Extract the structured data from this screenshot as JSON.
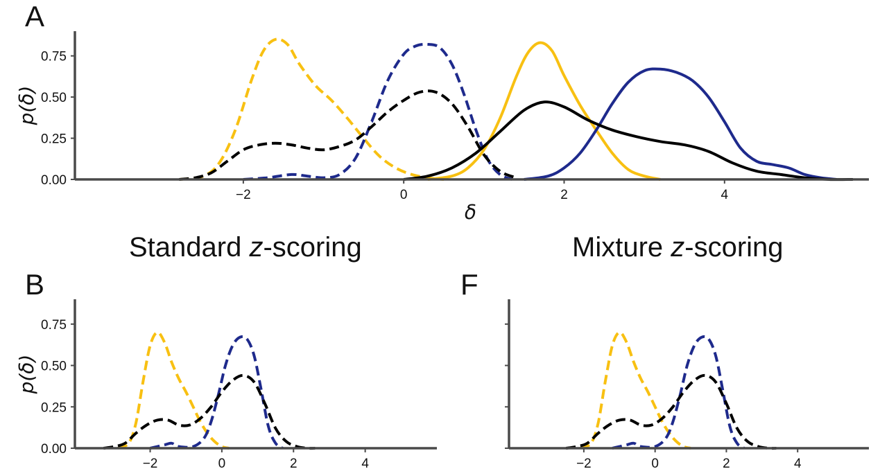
{
  "colors": {
    "gold": "#f8c012",
    "navy": "#1e2a8c",
    "black": "#000000",
    "axis": "#4a4a4a"
  },
  "section_titles": {
    "standard": "Standard ",
    "standard_z": "z",
    "standard_rest": "-scoring",
    "mixture": "Mixture ",
    "mixture_z": "z",
    "mixture_rest": "-scoring"
  },
  "chart_data": [
    {
      "panel": "A",
      "type": "line",
      "xlabel": "δ",
      "ylabel": "p(δ)",
      "xlim": [
        -4.1,
        5.8
      ],
      "ylim": [
        0,
        0.9
      ],
      "xticks": [
        "−2",
        "0",
        "2",
        "4"
      ],
      "xtick_values": [
        -2,
        0,
        2,
        4
      ],
      "yticks": [
        "0.00",
        "0.25",
        "0.50",
        "0.75"
      ],
      "ytick_values": [
        0,
        0.25,
        0.5,
        0.75
      ],
      "series": [
        {
          "color": "gold",
          "dash": true,
          "x": [
            -2.8,
            -2.5,
            -2.3,
            -2.1,
            -1.9,
            -1.75,
            -1.6,
            -1.45,
            -1.3,
            -1.1,
            -0.9,
            -0.7,
            -0.5,
            -0.3,
            -0.1,
            0.1,
            0.3,
            0.5
          ],
          "y": [
            0,
            0.02,
            0.1,
            0.3,
            0.6,
            0.78,
            0.85,
            0.82,
            0.7,
            0.57,
            0.48,
            0.37,
            0.25,
            0.14,
            0.07,
            0.03,
            0.01,
            0
          ]
        },
        {
          "color": "navy",
          "dash": true,
          "x": [
            -2.0,
            -1.7,
            -1.4,
            -1.2,
            -1.0,
            -0.8,
            -0.6,
            -0.4,
            -0.2,
            0.0,
            0.15,
            0.3,
            0.45,
            0.6,
            0.75,
            0.9,
            1.05,
            1.2,
            1.35
          ],
          "y": [
            0,
            0.01,
            0.03,
            0.02,
            0.01,
            0.03,
            0.13,
            0.35,
            0.6,
            0.76,
            0.81,
            0.82,
            0.8,
            0.7,
            0.52,
            0.3,
            0.12,
            0.03,
            0
          ]
        },
        {
          "color": "black",
          "dash": true,
          "x": [
            -2.8,
            -2.6,
            -2.4,
            -2.2,
            -2.0,
            -1.8,
            -1.6,
            -1.4,
            -1.2,
            -1.0,
            -0.8,
            -0.6,
            -0.4,
            -0.2,
            0.0,
            0.2,
            0.4,
            0.6,
            0.8,
            1.0,
            1.2,
            1.4
          ],
          "y": [
            0,
            0.01,
            0.04,
            0.11,
            0.18,
            0.21,
            0.22,
            0.21,
            0.19,
            0.18,
            0.2,
            0.24,
            0.32,
            0.41,
            0.48,
            0.53,
            0.53,
            0.46,
            0.32,
            0.15,
            0.05,
            0.01
          ]
        },
        {
          "color": "gold",
          "dash": false,
          "x": [
            0.3,
            0.6,
            0.8,
            1.0,
            1.2,
            1.4,
            1.55,
            1.7,
            1.85,
            2.0,
            2.2,
            2.4,
            2.6,
            2.8,
            3.0,
            3.2
          ],
          "y": [
            0,
            0.02,
            0.07,
            0.18,
            0.37,
            0.62,
            0.77,
            0.83,
            0.78,
            0.63,
            0.45,
            0.3,
            0.16,
            0.06,
            0.02,
            0
          ]
        },
        {
          "color": "navy",
          "dash": false,
          "x": [
            1.5,
            1.8,
            2.0,
            2.2,
            2.4,
            2.6,
            2.8,
            3.0,
            3.2,
            3.4,
            3.6,
            3.8,
            4.0,
            4.2,
            4.4,
            4.6,
            4.8,
            5.0,
            5.2,
            5.4
          ],
          "y": [
            0,
            0.02,
            0.07,
            0.16,
            0.3,
            0.46,
            0.59,
            0.66,
            0.67,
            0.65,
            0.6,
            0.5,
            0.35,
            0.19,
            0.11,
            0.09,
            0.07,
            0.03,
            0.01,
            0
          ]
        },
        {
          "color": "black",
          "dash": false,
          "x": [
            0.0,
            0.3,
            0.6,
            0.9,
            1.2,
            1.5,
            1.75,
            2.0,
            2.3,
            2.6,
            2.9,
            3.2,
            3.5,
            3.8,
            4.1,
            4.4,
            4.7,
            5.0,
            5.3,
            5.6
          ],
          "y": [
            0,
            0.02,
            0.07,
            0.16,
            0.29,
            0.42,
            0.47,
            0.44,
            0.36,
            0.3,
            0.26,
            0.23,
            0.21,
            0.17,
            0.1,
            0.05,
            0.03,
            0.01,
            0,
            0
          ]
        }
      ]
    },
    {
      "panel": "B",
      "type": "line",
      "ylabel": "p(δ)",
      "xlim": [
        -4.1,
        6.0
      ],
      "ylim": [
        0,
        0.9
      ],
      "xticks": [
        "−2",
        "0",
        "2",
        "4"
      ],
      "xtick_values": [
        -2,
        0,
        2,
        4
      ],
      "yticks": [
        "0.00",
        "0.25",
        "0.50",
        "0.75"
      ],
      "ytick_values": [
        0,
        0.25,
        0.5,
        0.75
      ],
      "series": [
        {
          "color": "gold",
          "dash": true,
          "x": [
            -2.9,
            -2.6,
            -2.4,
            -2.2,
            -2.0,
            -1.8,
            -1.6,
            -1.4,
            -1.2,
            -1.0,
            -0.8,
            -0.6,
            -0.4,
            -0.2,
            0.0,
            0.2
          ],
          "y": [
            0,
            0.03,
            0.15,
            0.4,
            0.62,
            0.7,
            0.64,
            0.52,
            0.42,
            0.34,
            0.25,
            0.16,
            0.09,
            0.04,
            0.01,
            0
          ]
        },
        {
          "color": "navy",
          "dash": true,
          "x": [
            -2.0,
            -1.6,
            -1.4,
            -1.2,
            -0.8,
            -0.5,
            -0.3,
            -0.1,
            0.1,
            0.3,
            0.5,
            0.7,
            0.9,
            1.1,
            1.3,
            1.5,
            1.7
          ],
          "y": [
            0,
            0.02,
            0.03,
            0.01,
            0.01,
            0.06,
            0.16,
            0.32,
            0.5,
            0.62,
            0.67,
            0.66,
            0.56,
            0.35,
            0.13,
            0.03,
            0
          ]
        },
        {
          "color": "black",
          "dash": true,
          "x": [
            -3.3,
            -3.0,
            -2.7,
            -2.4,
            -2.1,
            -1.8,
            -1.5,
            -1.2,
            -0.9,
            -0.6,
            -0.3,
            0.0,
            0.3,
            0.6,
            0.9,
            1.2,
            1.5,
            1.8,
            2.1,
            2.4,
            2.6
          ],
          "y": [
            0,
            0.01,
            0.03,
            0.09,
            0.14,
            0.17,
            0.17,
            0.14,
            0.14,
            0.18,
            0.25,
            0.34,
            0.41,
            0.44,
            0.4,
            0.27,
            0.12,
            0.04,
            0.01,
            0,
            0
          ]
        }
      ]
    },
    {
      "panel": "F",
      "type": "line",
      "xlim": [
        -4.1,
        6.0
      ],
      "ylim": [
        0,
        0.9
      ],
      "xticks": [
        "−2",
        "0",
        "2",
        "4"
      ],
      "xtick_values": [
        -2,
        0,
        2,
        4
      ],
      "ytick_values": [
        0,
        0.25,
        0.5,
        0.75
      ],
      "series": [
        {
          "color": "gold",
          "dash": true,
          "x": [
            -2.1,
            -1.8,
            -1.6,
            -1.4,
            -1.2,
            -1.0,
            -0.8,
            -0.6,
            -0.4,
            -0.2,
            0.0,
            0.2,
            0.4,
            0.6,
            0.8,
            1.0
          ],
          "y": [
            0,
            0.03,
            0.15,
            0.4,
            0.62,
            0.7,
            0.64,
            0.52,
            0.42,
            0.34,
            0.25,
            0.16,
            0.09,
            0.04,
            0.01,
            0
          ]
        },
        {
          "color": "navy",
          "dash": true,
          "x": [
            -1.2,
            -0.8,
            -0.6,
            -0.4,
            0.0,
            0.3,
            0.5,
            0.7,
            0.9,
            1.1,
            1.3,
            1.5,
            1.7,
            1.9,
            2.1,
            2.3,
            2.5
          ],
          "y": [
            0,
            0.02,
            0.03,
            0.01,
            0.01,
            0.06,
            0.16,
            0.32,
            0.5,
            0.62,
            0.67,
            0.66,
            0.56,
            0.35,
            0.13,
            0.03,
            0
          ]
        },
        {
          "color": "black",
          "dash": true,
          "x": [
            -2.5,
            -2.2,
            -1.9,
            -1.6,
            -1.3,
            -1.0,
            -0.7,
            -0.4,
            -0.1,
            0.2,
            0.5,
            0.8,
            1.1,
            1.4,
            1.7,
            2.0,
            2.3,
            2.6,
            2.9,
            3.2,
            3.4
          ],
          "y": [
            0,
            0.01,
            0.03,
            0.09,
            0.14,
            0.17,
            0.17,
            0.14,
            0.14,
            0.18,
            0.25,
            0.34,
            0.41,
            0.44,
            0.4,
            0.27,
            0.12,
            0.04,
            0.01,
            0,
            0
          ]
        }
      ]
    }
  ]
}
